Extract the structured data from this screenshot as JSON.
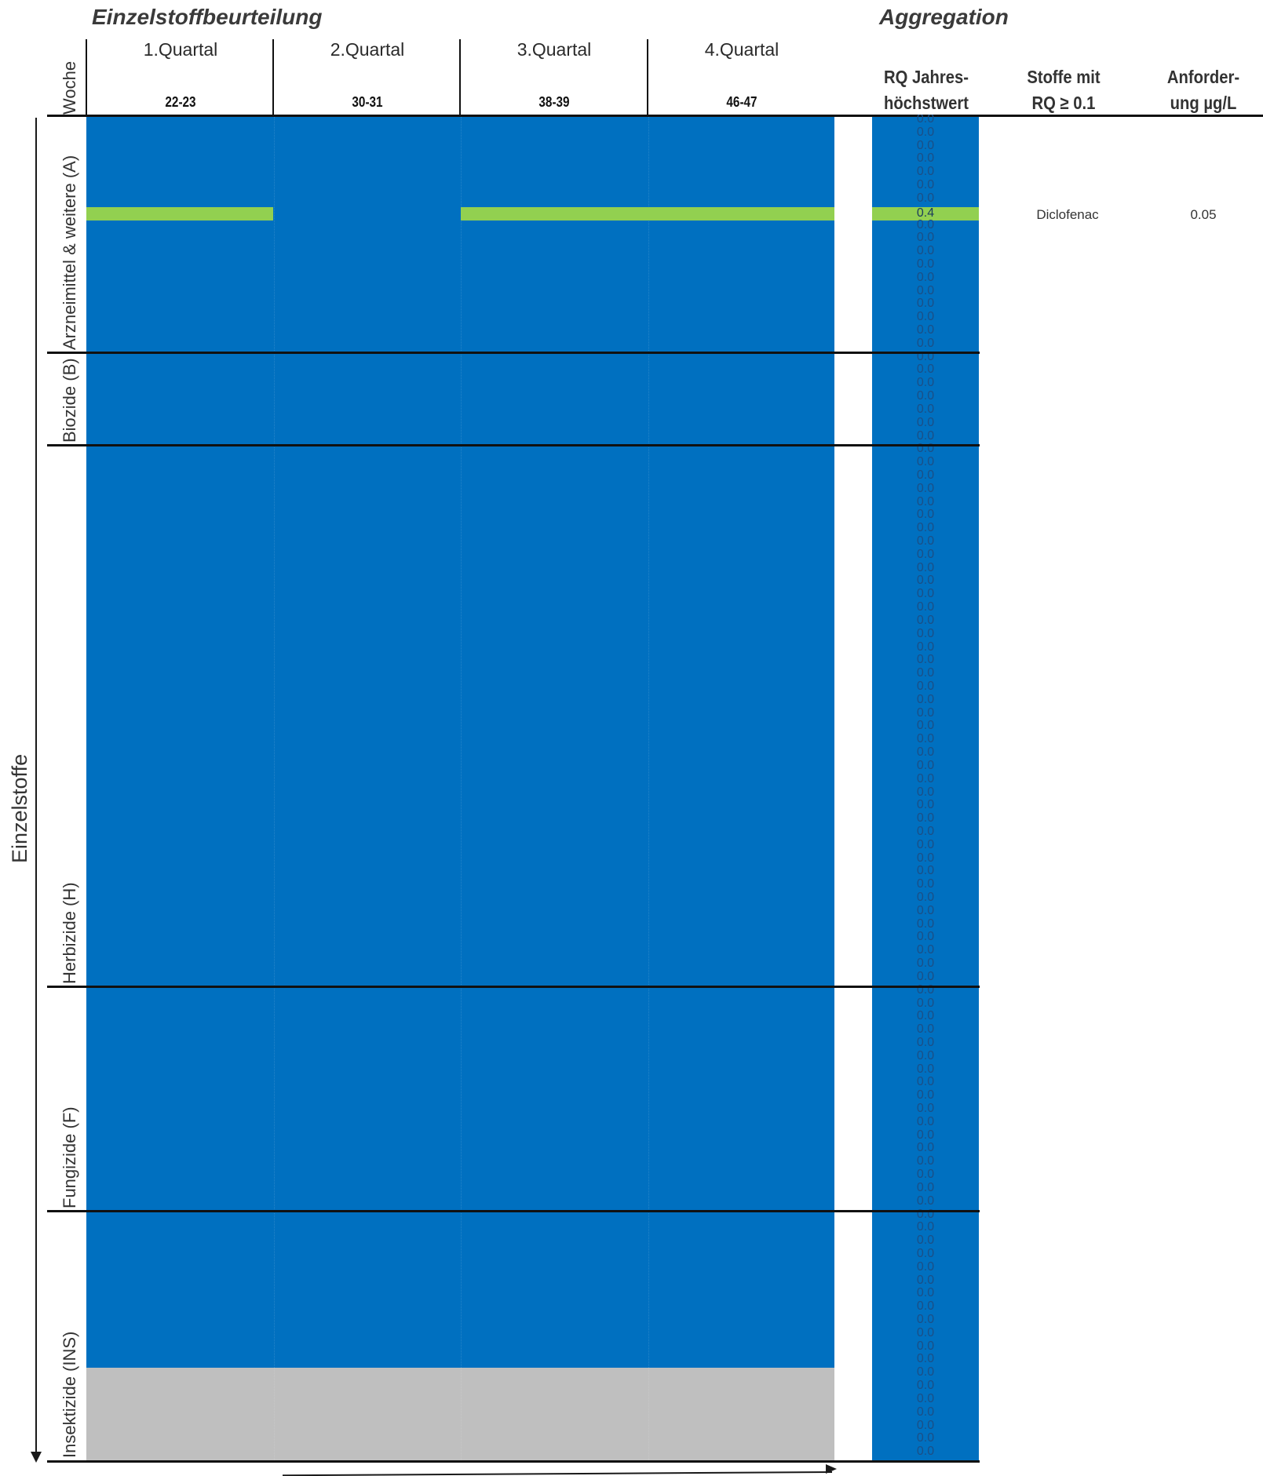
{
  "header": {
    "left_title": "Einzelstoffbeurteilung",
    "right_title": "Aggregation",
    "week_label": "Woche",
    "quarters": [
      {
        "label": "1.Quartal",
        "weeks": "22-23"
      },
      {
        "label": "2.Quartal",
        "weeks": "30-31"
      },
      {
        "label": "3.Quartal",
        "weeks": "38-39"
      },
      {
        "label": "4.Quartal",
        "weeks": "46-47"
      }
    ],
    "agg_columns": [
      {
        "line1": "RQ Jahres-",
        "line2": "höchstwert"
      },
      {
        "line1": "Stoffe mit",
        "line2": "RQ ≥ 0.1"
      },
      {
        "line1": "Anforder-",
        "line2": "ung µg/L"
      }
    ]
  },
  "axis": {
    "y_label": "Einzelstoffe"
  },
  "groups": [
    {
      "label": "Arzneimittel & weitere (A)"
    },
    {
      "label": "Biozide (B)"
    },
    {
      "label": "Herbizide (H)"
    },
    {
      "label": "Fungizide (F)"
    },
    {
      "label": "Insektizide (INS)"
    }
  ],
  "colors": {
    "below": "#0070c0",
    "moderate": "#92d050",
    "not_measured": "#bfbfbf",
    "background": "#ffffff"
  },
  "chart_data": {
    "type": "heatmap",
    "x": [
      "22-23",
      "30-31",
      "38-39",
      "46-47"
    ],
    "substances": [
      {
        "group": "Arzneimittel & weitere (A)",
        "name": "Diclofenac",
        "rq_max": 0.4,
        "requirement_ug_l": "0.05",
        "colored_quarters": [
          "22-23",
          "38-39",
          "46-47"
        ]
      }
    ],
    "rq_column": {
      "default_value": "0.0",
      "total_rows": 102,
      "highlight_index": 7,
      "highlight_value": "0.4"
    },
    "legend": []
  }
}
